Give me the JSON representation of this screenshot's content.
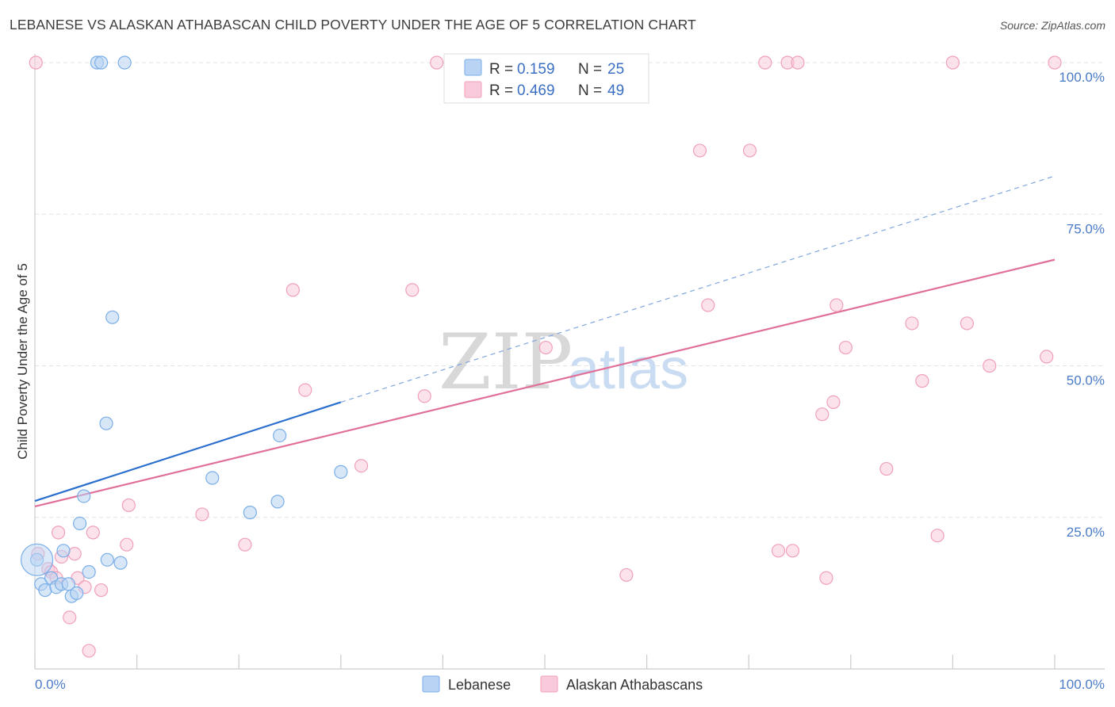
{
  "title": "LEBANESE VS ALASKAN ATHABASCAN CHILD POVERTY UNDER THE AGE OF 5 CORRELATION CHART",
  "source": "Source: ZipAtlas.com",
  "watermark": {
    "zip": "ZIP",
    "atlas": "atlas"
  },
  "chart_data": {
    "type": "scatter",
    "title": "LEBANESE VS ALASKAN ATHABASCAN CHILD POVERTY UNDER THE AGE OF 5 CORRELATION CHART",
    "xlabel": "",
    "ylabel": "Child Poverty Under the Age of 5",
    "xlim": [
      0,
      100
    ],
    "ylim": [
      0,
      100
    ],
    "x_tick_labels": {
      "left": "0.0%",
      "right": "100.0%"
    },
    "y_ticks": [
      {
        "value": 25,
        "label": "25.0%"
      },
      {
        "value": 50,
        "label": "50.0%"
      },
      {
        "value": 75,
        "label": "75.0%"
      },
      {
        "value": 100,
        "label": "100.0%"
      }
    ],
    "grid": true,
    "legend_position": "top-center",
    "series": [
      {
        "name": "Lebanese",
        "color": "#7aaee8",
        "fill": "#b8d3f3",
        "line_color": "#2b6fce",
        "R": "0.159",
        "N": "25",
        "trend": {
          "x0": 0,
          "y0": 27.7,
          "x1": 30,
          "y1": 44.0,
          "dash_to_x": 100,
          "dash_to_y": 81.3
        },
        "points": [
          [
            0.2,
            18.0
          ],
          [
            0.6,
            14.0
          ],
          [
            1.0,
            13.0
          ],
          [
            1.6,
            15.0
          ],
          [
            2.1,
            13.5
          ],
          [
            2.6,
            14.0
          ],
          [
            2.8,
            19.5
          ],
          [
            3.3,
            14.0
          ],
          [
            3.6,
            12.0
          ],
          [
            4.1,
            12.5
          ],
          [
            4.4,
            24.0
          ],
          [
            4.8,
            28.5
          ],
          [
            5.3,
            16.0
          ],
          [
            7.1,
            18.0
          ],
          [
            7.6,
            58.0
          ],
          [
            8.4,
            17.5
          ],
          [
            7.0,
            40.5
          ],
          [
            6.1,
            100
          ],
          [
            6.5,
            100
          ],
          [
            8.8,
            100
          ],
          [
            17.4,
            31.5
          ],
          [
            21.1,
            25.8
          ],
          [
            23.8,
            27.6
          ],
          [
            24.0,
            38.5
          ],
          [
            30.0,
            32.5
          ]
        ]
      },
      {
        "name": "Alaskan Athabascans",
        "color": "#f0a0ba",
        "fill": "#f9cadb",
        "line_color": "#e0709a",
        "R": "0.469",
        "N": "49",
        "trend": {
          "x0": 0,
          "y0": 26.8,
          "x1": 100,
          "y1": 67.5
        },
        "points": [
          [
            0.3,
            19.0
          ],
          [
            1.3,
            16.5
          ],
          [
            1.6,
            16.0
          ],
          [
            2.1,
            15.0
          ],
          [
            2.3,
            22.5
          ],
          [
            2.6,
            18.5
          ],
          [
            3.4,
            8.5
          ],
          [
            3.9,
            19.0
          ],
          [
            4.2,
            15.0
          ],
          [
            4.9,
            13.5
          ],
          [
            5.3,
            3.0
          ],
          [
            5.7,
            22.5
          ],
          [
            6.5,
            13.0
          ],
          [
            9.0,
            20.5
          ],
          [
            9.2,
            27.0
          ],
          [
            16.4,
            25.5
          ],
          [
            20.6,
            20.5
          ],
          [
            25.3,
            62.5
          ],
          [
            26.5,
            46.0
          ],
          [
            32.0,
            33.5
          ],
          [
            37.0,
            62.5
          ],
          [
            38.2,
            45.0
          ],
          [
            39.4,
            100
          ],
          [
            50.1,
            53.0
          ],
          [
            55.7,
            100
          ],
          [
            58.0,
            15.5
          ],
          [
            65.2,
            85.5
          ],
          [
            66.0,
            60.0
          ],
          [
            70.1,
            85.5
          ],
          [
            71.6,
            100
          ],
          [
            72.9,
            19.5
          ],
          [
            73.8,
            100
          ],
          [
            74.3,
            19.5
          ],
          [
            74.8,
            100
          ],
          [
            77.2,
            42.0
          ],
          [
            77.6,
            15.0
          ],
          [
            78.3,
            44.0
          ],
          [
            78.6,
            60.0
          ],
          [
            79.5,
            53.0
          ],
          [
            83.5,
            33.0
          ],
          [
            86.0,
            57.0
          ],
          [
            87.0,
            47.5
          ],
          [
            88.5,
            22.0
          ],
          [
            90.0,
            100
          ],
          [
            91.4,
            57.0
          ],
          [
            93.6,
            50.0
          ],
          [
            99.2,
            51.5
          ],
          [
            100.0,
            100
          ],
          [
            0.1,
            100
          ]
        ]
      }
    ]
  }
}
